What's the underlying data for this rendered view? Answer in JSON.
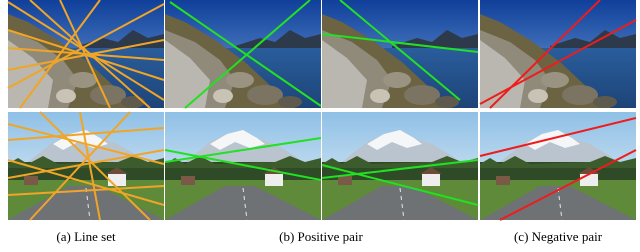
{
  "figure": {
    "captions": [
      "(a) Line set",
      "(b) Positive pair",
      "(c) Negative pair"
    ]
  }
}
